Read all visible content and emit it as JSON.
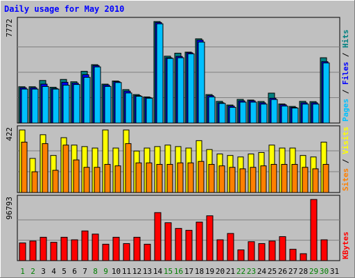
{
  "title": "Daily usage for May 2010",
  "chart_data": [
    {
      "type": "bar",
      "panel": "hits-files-pages",
      "categories": [
        "1",
        "2",
        "3",
        "4",
        "5",
        "6",
        "7",
        "8",
        "9",
        "10",
        "11",
        "12",
        "13",
        "14",
        "15",
        "16",
        "17",
        "18",
        "19",
        "20",
        "21",
        "22",
        "23",
        "24",
        "25",
        "26",
        "27",
        "28",
        "29",
        "30",
        "31"
      ],
      "weekend_days": [
        "1",
        "2",
        "8",
        "9",
        "15",
        "16",
        "22",
        "23",
        "29",
        "30"
      ],
      "ymax_label": "7772",
      "ylim": [
        0,
        7772
      ],
      "grid": true,
      "ylabel_parts": [
        {
          "text": "Pages",
          "color": "#00c0ff"
        },
        {
          "text": " / ",
          "color": "#000000"
        },
        {
          "text": "Files",
          "color": "#0000ff"
        },
        {
          "text": " / ",
          "color": "#000000"
        },
        {
          "text": "Hits",
          "color": "#008080"
        }
      ],
      "series": [
        {
          "name": "Hits",
          "color": "#008080",
          "values": [
            2780,
            2780,
            3260,
            2740,
            3340,
            3160,
            3960,
            4470,
            2980,
            3220,
            2560,
            2180,
            2000,
            7772,
            5120,
            5350,
            5430,
            6450,
            2180,
            1660,
            1380,
            1810,
            1760,
            1650,
            2290,
            1460,
            1270,
            1660,
            1640,
            5000,
            0
          ]
        },
        {
          "name": "Files",
          "color": "#0000ff",
          "values": [
            2700,
            2700,
            2980,
            2650,
            3120,
            3060,
            3700,
            4400,
            2910,
            3170,
            2440,
            2100,
            1950,
            7700,
            5000,
            5100,
            5380,
            6350,
            2100,
            1550,
            1300,
            1700,
            1700,
            1550,
            1900,
            1400,
            1200,
            1550,
            1550,
            4700,
            0
          ]
        },
        {
          "name": "Pages",
          "color": "#00c0ff",
          "values": [
            2600,
            2600,
            2800,
            2600,
            2900,
            2950,
            3500,
            4300,
            2800,
            3100,
            2300,
            2050,
            1900,
            7600,
            4950,
            5000,
            5300,
            6200,
            2000,
            1500,
            1200,
            1600,
            1600,
            1450,
            1800,
            1300,
            1150,
            1450,
            1450,
            4600,
            0
          ]
        }
      ]
    },
    {
      "type": "bar",
      "panel": "visits-sites",
      "categories": [
        "1",
        "2",
        "3",
        "4",
        "5",
        "6",
        "7",
        "8",
        "9",
        "10",
        "11",
        "12",
        "13",
        "14",
        "15",
        "16",
        "17",
        "18",
        "19",
        "20",
        "21",
        "22",
        "23",
        "24",
        "25",
        "26",
        "27",
        "28",
        "29",
        "30",
        "31"
      ],
      "ymax_label": "422",
      "ylim": [
        0,
        422
      ],
      "grid": true,
      "ylabel_parts": [
        {
          "text": "Sites",
          "color": "#ff8000"
        },
        {
          "text": " / ",
          "color": "#000000"
        },
        {
          "text": "Visits",
          "color": "#ffff00"
        }
      ],
      "series": [
        {
          "name": "Visits",
          "color": "#ffff00",
          "values": [
            422,
            230,
            390,
            250,
            370,
            320,
            310,
            300,
            422,
            300,
            422,
            280,
            300,
            310,
            320,
            310,
            300,
            350,
            290,
            260,
            250,
            240,
            260,
            270,
            320,
            300,
            300,
            250,
            240,
            340,
            0
          ]
        },
        {
          "name": "Sites",
          "color": "#ff8000",
          "values": [
            340,
            140,
            330,
            150,
            320,
            220,
            170,
            170,
            190,
            180,
            330,
            200,
            200,
            190,
            190,
            200,
            200,
            210,
            190,
            180,
            170,
            160,
            170,
            180,
            190,
            190,
            190,
            170,
            160,
            190,
            0
          ]
        }
      ]
    },
    {
      "type": "bar",
      "panel": "kbytes",
      "categories": [
        "1",
        "2",
        "3",
        "4",
        "5",
        "6",
        "7",
        "8",
        "9",
        "10",
        "11",
        "12",
        "13",
        "14",
        "15",
        "16",
        "17",
        "18",
        "19",
        "20",
        "21",
        "22",
        "23",
        "24",
        "25",
        "26",
        "27",
        "28",
        "29",
        "30",
        "31"
      ],
      "ymax_label": "96793",
      "ylim": [
        0,
        96793
      ],
      "grid": true,
      "ylabel_parts": [
        {
          "text": "KBytes",
          "color": "#ff0000"
        }
      ],
      "series": [
        {
          "name": "KBytes",
          "color": "#ff0000",
          "values": [
            28000,
            31000,
            37000,
            29000,
            37000,
            33000,
            47000,
            42000,
            26000,
            37000,
            27000,
            37000,
            26000,
            76000,
            60000,
            51000,
            48000,
            61000,
            71000,
            33000,
            43000,
            17000,
            30000,
            27000,
            31000,
            38000,
            18000,
            11000,
            96793,
            33000,
            0
          ]
        }
      ]
    }
  ]
}
